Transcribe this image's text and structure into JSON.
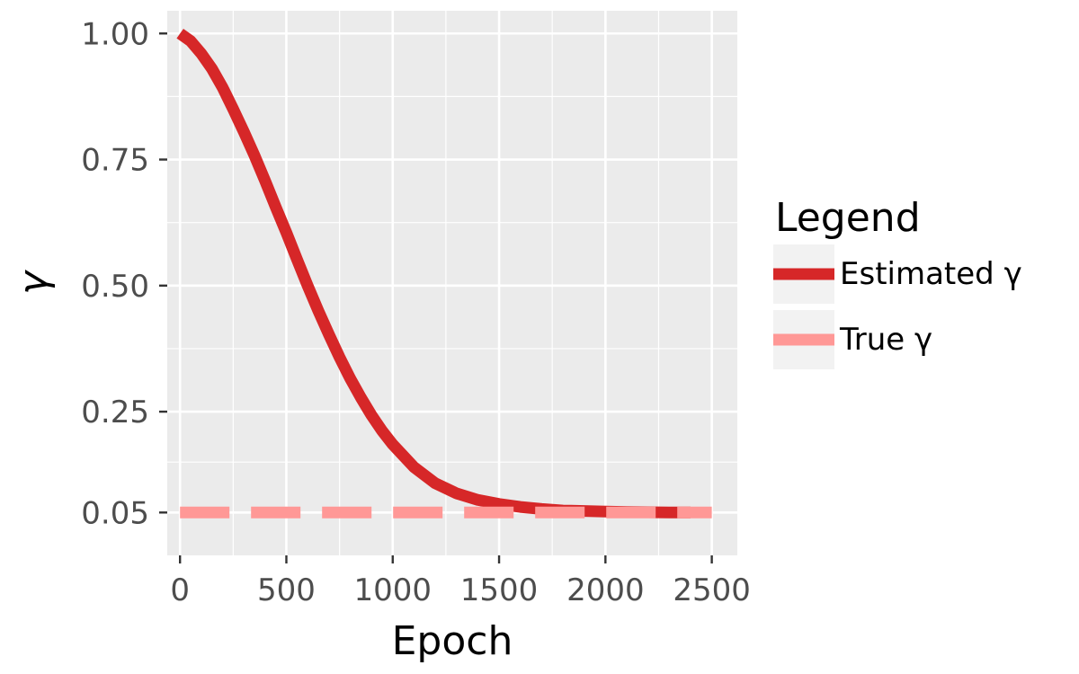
{
  "chart_data": {
    "type": "line",
    "xlabel": "Epoch",
    "ylabel": "γ",
    "xlim": [
      -60,
      2620
    ],
    "ylim": [
      -0.035,
      1.045
    ],
    "x_ticks": [
      0,
      500,
      1000,
      1500,
      2000,
      2500
    ],
    "x_tick_labels": [
      "0",
      "500",
      "1000",
      "1500",
      "2000",
      "2500"
    ],
    "y_ticks": [
      0.05,
      0.25,
      0.5,
      0.75,
      1.0
    ],
    "y_tick_labels": [
      "0.05",
      "0.25",
      "0.50",
      "0.75",
      "1.00"
    ],
    "grid": true,
    "legend": {
      "title": "Legend",
      "position": "right",
      "entries": [
        {
          "label": "Estimated γ",
          "color": "#d62728",
          "dashed": false
        },
        {
          "label": "True γ",
          "color": "#ff9896",
          "dashed": true
        }
      ]
    },
    "series": [
      {
        "name": "Estimated γ",
        "color": "#d62728",
        "style": "solid",
        "x": [
          0,
          50,
          100,
          150,
          200,
          250,
          300,
          350,
          400,
          450,
          500,
          550,
          600,
          650,
          700,
          750,
          800,
          850,
          900,
          950,
          1000,
          1100,
          1200,
          1300,
          1400,
          1500,
          1600,
          1700,
          1800,
          1900,
          2000,
          2100,
          2200,
          2300,
          2400
        ],
        "y": [
          1.0,
          0.985,
          0.96,
          0.93,
          0.893,
          0.85,
          0.805,
          0.758,
          0.708,
          0.656,
          0.605,
          0.552,
          0.5,
          0.45,
          0.403,
          0.358,
          0.316,
          0.278,
          0.243,
          0.212,
          0.185,
          0.14,
          0.108,
          0.088,
          0.075,
          0.067,
          0.061,
          0.057,
          0.054,
          0.053,
          0.052,
          0.051,
          0.0505,
          0.05,
          0.05
        ]
      },
      {
        "name": "True γ",
        "color": "#ff9896",
        "style": "dashed",
        "x": [
          0,
          2500
        ],
        "y": [
          0.05,
          0.05
        ]
      }
    ]
  }
}
